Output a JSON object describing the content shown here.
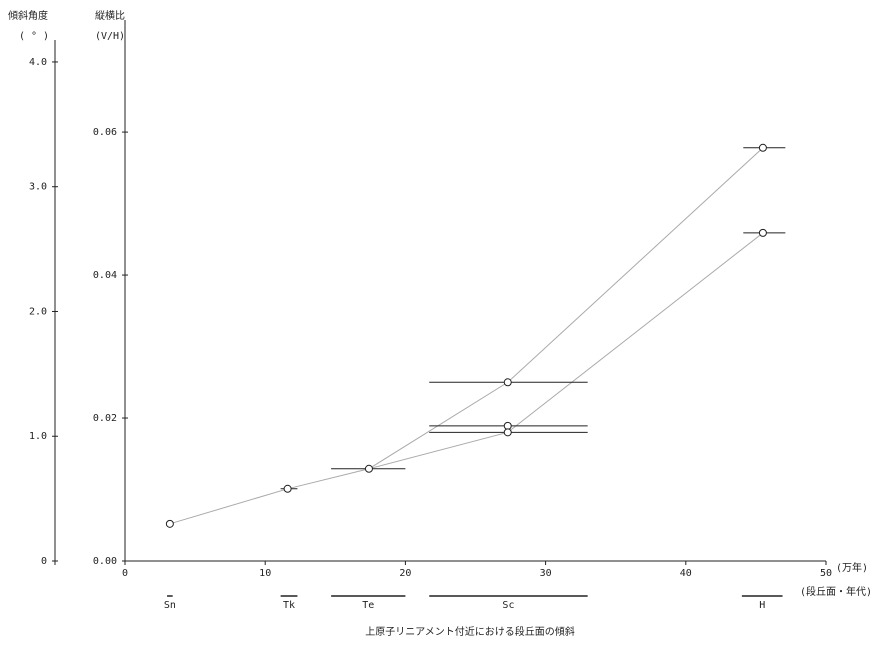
{
  "chart_data": {
    "type": "scatter",
    "caption": "上原子リニアメント付近における段丘面の傾斜",
    "y_label": "傾斜角度",
    "y_unit": "( ° )",
    "y2_label": "縦横比",
    "y2_unit": "(V/H)",
    "x_unit": "(万年)",
    "stage_label": "(段丘面・年代)",
    "xlim": [
      0,
      50
    ],
    "xticks": [
      0,
      10,
      20,
      30,
      40,
      50
    ],
    "ylim": [
      0,
      4.2
    ],
    "yticks": [
      0,
      {
        "value": 1,
        "label": "1.0"
      },
      {
        "value": 2,
        "label": "2.0"
      },
      {
        "value": 3,
        "label": "3.0"
      },
      {
        "value": 4,
        "label": "4.0"
      }
    ],
    "y2lim": [
      0,
      0.0733
    ],
    "y2ticks": [
      {
        "value": 0,
        "label": "0.00"
      },
      {
        "value": 0.02,
        "label": "0.02"
      },
      {
        "value": 0.04,
        "label": "0.04"
      },
      {
        "value": 0.06,
        "label": "0.06"
      }
    ],
    "series": [
      {
        "axis": "y2",
        "color": "#222222",
        "x": [
          3.2,
          11.6,
          17.4,
          27.3,
          27.3,
          27.3,
          45.5,
          45.5
        ],
        "values": [
          0.0052,
          0.0101,
          0.0129,
          0.025,
          0.0189,
          0.018,
          0.0578,
          0.0459
        ],
        "xerr": [
          null,
          [
            11.1,
            12.3
          ],
          [
            14.7,
            20.0
          ],
          [
            21.7,
            33.0
          ],
          [
            21.7,
            33.0
          ],
          [
            21.7,
            33.0
          ],
          [
            44.1,
            47.1
          ],
          [
            44.1,
            47.1
          ]
        ]
      },
      {
        "type": "line",
        "axis": "y2",
        "color": "#aaaaaa",
        "x": [
          3.2,
          11.6,
          17.4,
          27.3,
          45.5
        ],
        "values": [
          0.0052,
          0.0101,
          0.0129,
          0.025,
          0.0578
        ]
      },
      {
        "type": "line",
        "axis": "y2",
        "color": "#aaaaaa",
        "x": [
          17.4,
          27.3,
          45.5
        ],
        "values": [
          0.0129,
          0.018,
          0.0459
        ]
      }
    ],
    "stages": [
      {
        "label": "Sn",
        "range": [
          3.0,
          3.4
        ]
      },
      {
        "label": "Tk",
        "range": [
          11.1,
          12.3
        ]
      },
      {
        "label": "Te",
        "range": [
          14.7,
          20.0
        ]
      },
      {
        "label": "Sc",
        "range": [
          21.7,
          33.0
        ]
      },
      {
        "label": "H",
        "range": [
          44.0,
          46.9
        ]
      }
    ]
  }
}
